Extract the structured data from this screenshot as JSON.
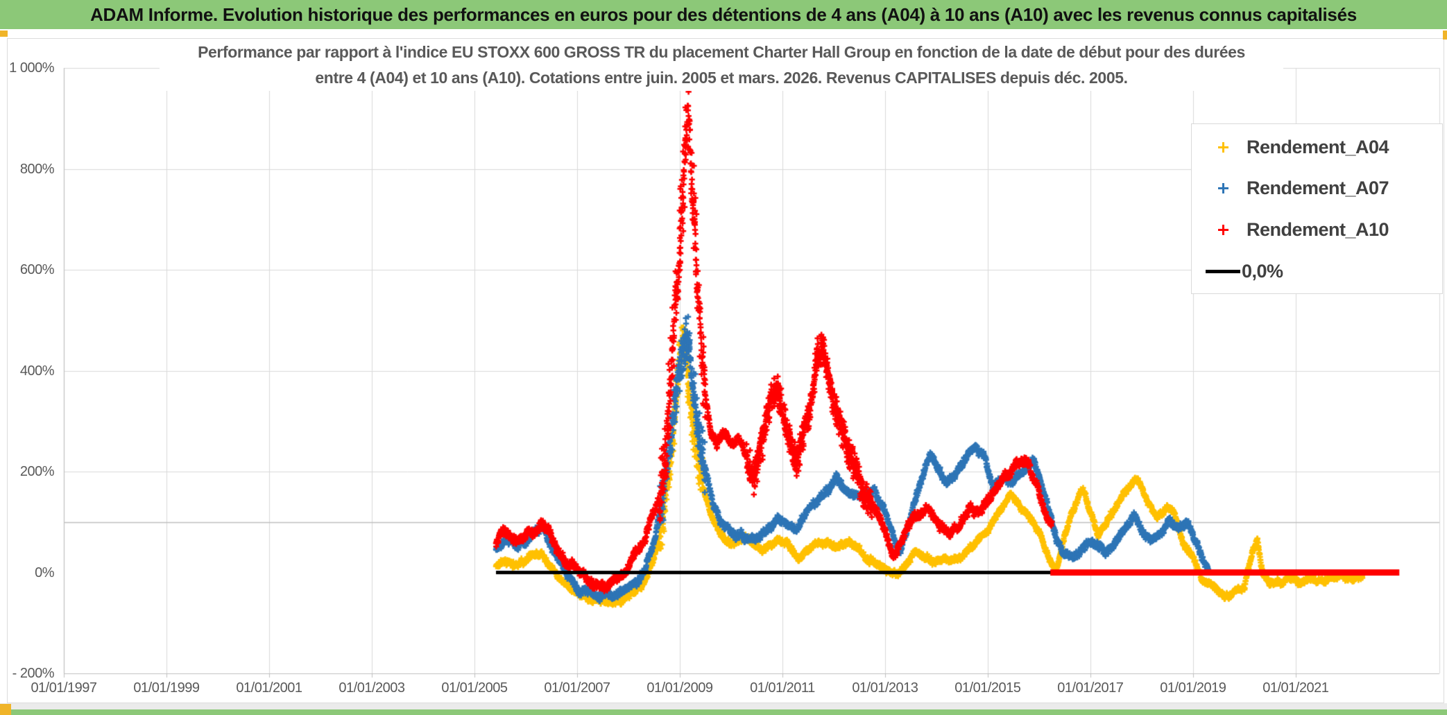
{
  "header": {
    "title": "ADAM Informe. Evolution historique des performances en euros pour des détentions de 4 ans (A04) à 10 ans (A10) avec les revenus connus capitalisés"
  },
  "chart": {
    "subtitle_line1": "Performance par rapport à l'indice EU STOXX 600 GROSS TR  du placement Charter Hall Group en fonction de la date de début pour des durées",
    "subtitle_line2": "entre 4 (A04) et 10 ans (A10). Cotations entre juin. 2005 et mars. 2026. Revenus CAPITALISES depuis déc. 2005.",
    "y_axis": {
      "labels": [
        "1 000%",
        "800%",
        "600%",
        "400%",
        "200%",
        "0%",
        "- 200%"
      ],
      "ticks": [
        1000,
        800,
        600,
        400,
        200,
        0,
        -200
      ]
    },
    "x_axis": {
      "labels": [
        "01/01/1997",
        "01/01/1999",
        "01/01/2001",
        "01/01/2003",
        "01/01/2005",
        "01/01/2007",
        "01/01/2009",
        "01/01/2011",
        "01/01/2013",
        "01/01/2015",
        "01/01/2017",
        "01/01/2019",
        "01/01/2021"
      ],
      "years": [
        1997,
        1999,
        2001,
        2003,
        2005,
        2007,
        2009,
        2011,
        2013,
        2015,
        2017,
        2019,
        2021
      ]
    },
    "legend": [
      {
        "label": "Rendement_A04",
        "color": "#FFC000",
        "marker": "plus"
      },
      {
        "label": "Rendement_A07",
        "color": "#2E75B6",
        "marker": "plus"
      },
      {
        "label": "Rendement_A10",
        "color": "#FF0000",
        "marker": "plus"
      },
      {
        "label": "0,0%",
        "color": "#000000",
        "marker": "line"
      }
    ],
    "colors": {
      "header_green": "#8CC878",
      "accent_orange": "#F0B429",
      "grid": "#d9d9d9",
      "axis": "#bfbfbf",
      "text": "#595959"
    }
  },
  "chart_data": {
    "type": "scatter",
    "x_unit": "decimal_year",
    "y_unit": "percent",
    "xlim": [
      1997.0,
      2023.8
    ],
    "ylim": [
      -200,
      1000
    ],
    "x_tick_years": [
      1997,
      1999,
      2001,
      2003,
      2005,
      2007,
      2009,
      2011,
      2013,
      2015,
      2017,
      2019,
      2021
    ],
    "y_ticks": [
      1000,
      800,
      600,
      400,
      200,
      0,
      -200
    ],
    "gridline_pcts": [
      1000,
      800,
      600,
      400,
      200
    ],
    "axis_line_pct": 100,
    "bottom_pct": -200,
    "legend_position": "top-right",
    "series": [
      {
        "name": "Rendement_A04",
        "key": "A04",
        "kind": "scatter",
        "color": "#FFC000",
        "marker": "plus",
        "points": [
          [
            2005.42,
            12
          ],
          [
            2005.6,
            25
          ],
          [
            2005.75,
            14
          ],
          [
            2005.95,
            22
          ],
          [
            2006.15,
            38
          ],
          [
            2006.3,
            42
          ],
          [
            2006.45,
            22
          ],
          [
            2006.6,
            -2
          ],
          [
            2006.8,
            -22
          ],
          [
            2007.0,
            -42
          ],
          [
            2007.3,
            -55
          ],
          [
            2007.6,
            -60
          ],
          [
            2007.9,
            -52
          ],
          [
            2008.1,
            -42
          ],
          [
            2008.3,
            -22
          ],
          [
            2008.5,
            28
          ],
          [
            2008.65,
            90
          ],
          [
            2008.8,
            200
          ],
          [
            2008.9,
            310
          ],
          [
            2009.0,
            430
          ],
          [
            2009.08,
            480
          ],
          [
            2009.18,
            360
          ],
          [
            2009.3,
            255
          ],
          [
            2009.45,
            180
          ],
          [
            2009.6,
            120
          ],
          [
            2009.8,
            72
          ],
          [
            2010.0,
            55
          ],
          [
            2010.3,
            70
          ],
          [
            2010.6,
            45
          ],
          [
            2010.9,
            66
          ],
          [
            2011.1,
            60
          ],
          [
            2011.3,
            24
          ],
          [
            2011.5,
            46
          ],
          [
            2011.7,
            62
          ],
          [
            2011.9,
            55
          ],
          [
            2012.1,
            50
          ],
          [
            2012.3,
            56
          ],
          [
            2012.5,
            46
          ],
          [
            2012.7,
            26
          ],
          [
            2012.9,
            12
          ],
          [
            2013.1,
            0
          ],
          [
            2013.25,
            -6
          ],
          [
            2013.4,
            14
          ],
          [
            2013.6,
            40
          ],
          [
            2013.8,
            30
          ],
          [
            2014.0,
            20
          ],
          [
            2014.2,
            26
          ],
          [
            2014.5,
            32
          ],
          [
            2014.8,
            62
          ],
          [
            2015.0,
            82
          ],
          [
            2015.2,
            112
          ],
          [
            2015.45,
            155
          ],
          [
            2015.6,
            132
          ],
          [
            2015.8,
            114
          ],
          [
            2016.0,
            80
          ],
          [
            2016.2,
            22
          ],
          [
            2016.35,
            10
          ],
          [
            2016.5,
            76
          ],
          [
            2016.7,
            132
          ],
          [
            2016.85,
            166
          ],
          [
            2017.0,
            120
          ],
          [
            2017.15,
            76
          ],
          [
            2017.3,
            96
          ],
          [
            2017.5,
            132
          ],
          [
            2017.7,
            162
          ],
          [
            2017.92,
            190
          ],
          [
            2018.1,
            142
          ],
          [
            2018.3,
            110
          ],
          [
            2018.5,
            132
          ],
          [
            2018.65,
            118
          ],
          [
            2018.8,
            62
          ],
          [
            2019.0,
            30
          ],
          [
            2019.2,
            -14
          ],
          [
            2019.4,
            -30
          ],
          [
            2019.6,
            -46
          ],
          [
            2019.8,
            -40
          ],
          [
            2020.0,
            -28
          ],
          [
            2020.17,
            45
          ],
          [
            2020.25,
            66
          ],
          [
            2020.35,
            2
          ],
          [
            2020.5,
            -24
          ],
          [
            2020.7,
            -20
          ],
          [
            2020.9,
            -16
          ],
          [
            2021.1,
            -20
          ],
          [
            2021.3,
            -10
          ],
          [
            2021.5,
            -16
          ],
          [
            2021.7,
            -10
          ],
          [
            2021.9,
            -6
          ],
          [
            2022.1,
            -12
          ],
          [
            2022.3,
            -6
          ]
        ]
      },
      {
        "name": "Rendement_A07",
        "key": "A07",
        "kind": "scatter",
        "color": "#2E75B6",
        "marker": "plus",
        "points": [
          [
            2005.42,
            48
          ],
          [
            2005.6,
            70
          ],
          [
            2005.8,
            55
          ],
          [
            2006.0,
            62
          ],
          [
            2006.2,
            80
          ],
          [
            2006.32,
            98
          ],
          [
            2006.45,
            66
          ],
          [
            2006.6,
            30
          ],
          [
            2006.8,
            -5
          ],
          [
            2007.0,
            -32
          ],
          [
            2007.3,
            -45
          ],
          [
            2007.6,
            -48
          ],
          [
            2007.9,
            -35
          ],
          [
            2008.1,
            -25
          ],
          [
            2008.3,
            0
          ],
          [
            2008.5,
            60
          ],
          [
            2008.65,
            130
          ],
          [
            2008.8,
            240
          ],
          [
            2008.92,
            340
          ],
          [
            2009.05,
            430
          ],
          [
            2009.15,
            465
          ],
          [
            2009.25,
            380
          ],
          [
            2009.35,
            300
          ],
          [
            2009.5,
            210
          ],
          [
            2009.65,
            130
          ],
          [
            2009.8,
            95
          ],
          [
            2010.0,
            85
          ],
          [
            2010.2,
            72
          ],
          [
            2010.45,
            65
          ],
          [
            2010.7,
            80
          ],
          [
            2010.9,
            108
          ],
          [
            2011.1,
            92
          ],
          [
            2011.3,
            85
          ],
          [
            2011.5,
            125
          ],
          [
            2011.7,
            148
          ],
          [
            2011.9,
            162
          ],
          [
            2012.05,
            192
          ],
          [
            2012.2,
            168
          ],
          [
            2012.4,
            150
          ],
          [
            2012.6,
            152
          ],
          [
            2012.8,
            162
          ],
          [
            2013.0,
            125
          ],
          [
            2013.15,
            70
          ],
          [
            2013.3,
            42
          ],
          [
            2013.45,
            90
          ],
          [
            2013.6,
            150
          ],
          [
            2013.75,
            205
          ],
          [
            2013.9,
            235
          ],
          [
            2014.05,
            200
          ],
          [
            2014.2,
            172
          ],
          [
            2014.4,
            205
          ],
          [
            2014.6,
            230
          ],
          [
            2014.75,
            248
          ],
          [
            2014.9,
            238
          ],
          [
            2015.1,
            172
          ],
          [
            2015.3,
            188
          ],
          [
            2015.5,
            172
          ],
          [
            2015.7,
            205
          ],
          [
            2015.9,
            218
          ],
          [
            2016.05,
            175
          ],
          [
            2016.2,
            120
          ],
          [
            2016.35,
            62
          ],
          [
            2016.5,
            40
          ],
          [
            2016.7,
            28
          ],
          [
            2016.9,
            56
          ],
          [
            2017.1,
            62
          ],
          [
            2017.3,
            40
          ],
          [
            2017.5,
            62
          ],
          [
            2017.7,
            92
          ],
          [
            2017.85,
            115
          ],
          [
            2018.0,
            82
          ],
          [
            2018.2,
            62
          ],
          [
            2018.4,
            88
          ],
          [
            2018.55,
            108
          ],
          [
            2018.7,
            82
          ],
          [
            2018.9,
            102
          ],
          [
            2019.05,
            62
          ],
          [
            2019.2,
            22
          ],
          [
            2019.3,
            8
          ]
        ]
      },
      {
        "name": "Rendement_A10",
        "key": "A10",
        "kind": "scatter",
        "color": "#FF0000",
        "marker": "plus",
        "points": [
          [
            2005.42,
            55
          ],
          [
            2005.55,
            82
          ],
          [
            2005.7,
            70
          ],
          [
            2005.85,
            62
          ],
          [
            2006.0,
            72
          ],
          [
            2006.15,
            78
          ],
          [
            2006.3,
            92
          ],
          [
            2006.45,
            76
          ],
          [
            2006.6,
            46
          ],
          [
            2006.8,
            20
          ],
          [
            2007.0,
            4
          ],
          [
            2007.2,
            -16
          ],
          [
            2007.4,
            -26
          ],
          [
            2007.6,
            -26
          ],
          [
            2007.8,
            -14
          ],
          [
            2008.0,
            12
          ],
          [
            2008.15,
            42
          ],
          [
            2008.3,
            62
          ],
          [
            2008.45,
            112
          ],
          [
            2008.6,
            145
          ],
          [
            2008.72,
            230
          ],
          [
            2008.82,
            380
          ],
          [
            2008.9,
            520
          ],
          [
            2009.0,
            660
          ],
          [
            2009.1,
            820
          ],
          [
            2009.16,
            905
          ],
          [
            2009.22,
            800
          ],
          [
            2009.28,
            720
          ],
          [
            2009.34,
            580
          ],
          [
            2009.42,
            440
          ],
          [
            2009.5,
            340
          ],
          [
            2009.6,
            285
          ],
          [
            2009.72,
            250
          ],
          [
            2009.85,
            282
          ],
          [
            2010.0,
            252
          ],
          [
            2010.15,
            272
          ],
          [
            2010.3,
            232
          ],
          [
            2010.45,
            182
          ],
          [
            2010.6,
            252
          ],
          [
            2010.75,
            330
          ],
          [
            2010.88,
            375
          ],
          [
            2011.0,
            320
          ],
          [
            2011.15,
            260
          ],
          [
            2011.28,
            215
          ],
          [
            2011.42,
            280
          ],
          [
            2011.55,
            330
          ],
          [
            2011.68,
            430
          ],
          [
            2011.8,
            445
          ],
          [
            2011.95,
            360
          ],
          [
            2012.1,
            300
          ],
          [
            2012.25,
            250
          ],
          [
            2012.4,
            210
          ],
          [
            2012.55,
            160
          ],
          [
            2012.7,
            130
          ],
          [
            2012.85,
            115
          ],
          [
            2013.0,
            80
          ],
          [
            2013.15,
            35
          ],
          [
            2013.3,
            60
          ],
          [
            2013.45,
            95
          ],
          [
            2013.65,
            108
          ],
          [
            2013.85,
            122
          ],
          [
            2014.05,
            98
          ],
          [
            2014.25,
            72
          ],
          [
            2014.45,
            95
          ],
          [
            2014.65,
            128
          ],
          [
            2014.85,
            118
          ],
          [
            2015.05,
            148
          ],
          [
            2015.25,
            178
          ],
          [
            2015.45,
            198
          ],
          [
            2015.65,
            225
          ],
          [
            2015.8,
            218
          ],
          [
            2015.95,
            175
          ],
          [
            2016.1,
            125
          ],
          [
            2016.25,
            95
          ]
        ]
      },
      {
        "name": "0,0%",
        "key": "ZERO",
        "kind": "line",
        "color": "#000000",
        "width": 5,
        "points": [
          [
            2005.42,
            0
          ],
          [
            2023.0,
            0
          ]
        ]
      },
      {
        "name": "Rendement_A10_zero_segment",
        "key": "A10Z",
        "kind": "line",
        "color": "#FF0000",
        "width": 9,
        "points": [
          [
            2016.22,
            0
          ],
          [
            2023.02,
            0
          ]
        ]
      }
    ]
  }
}
